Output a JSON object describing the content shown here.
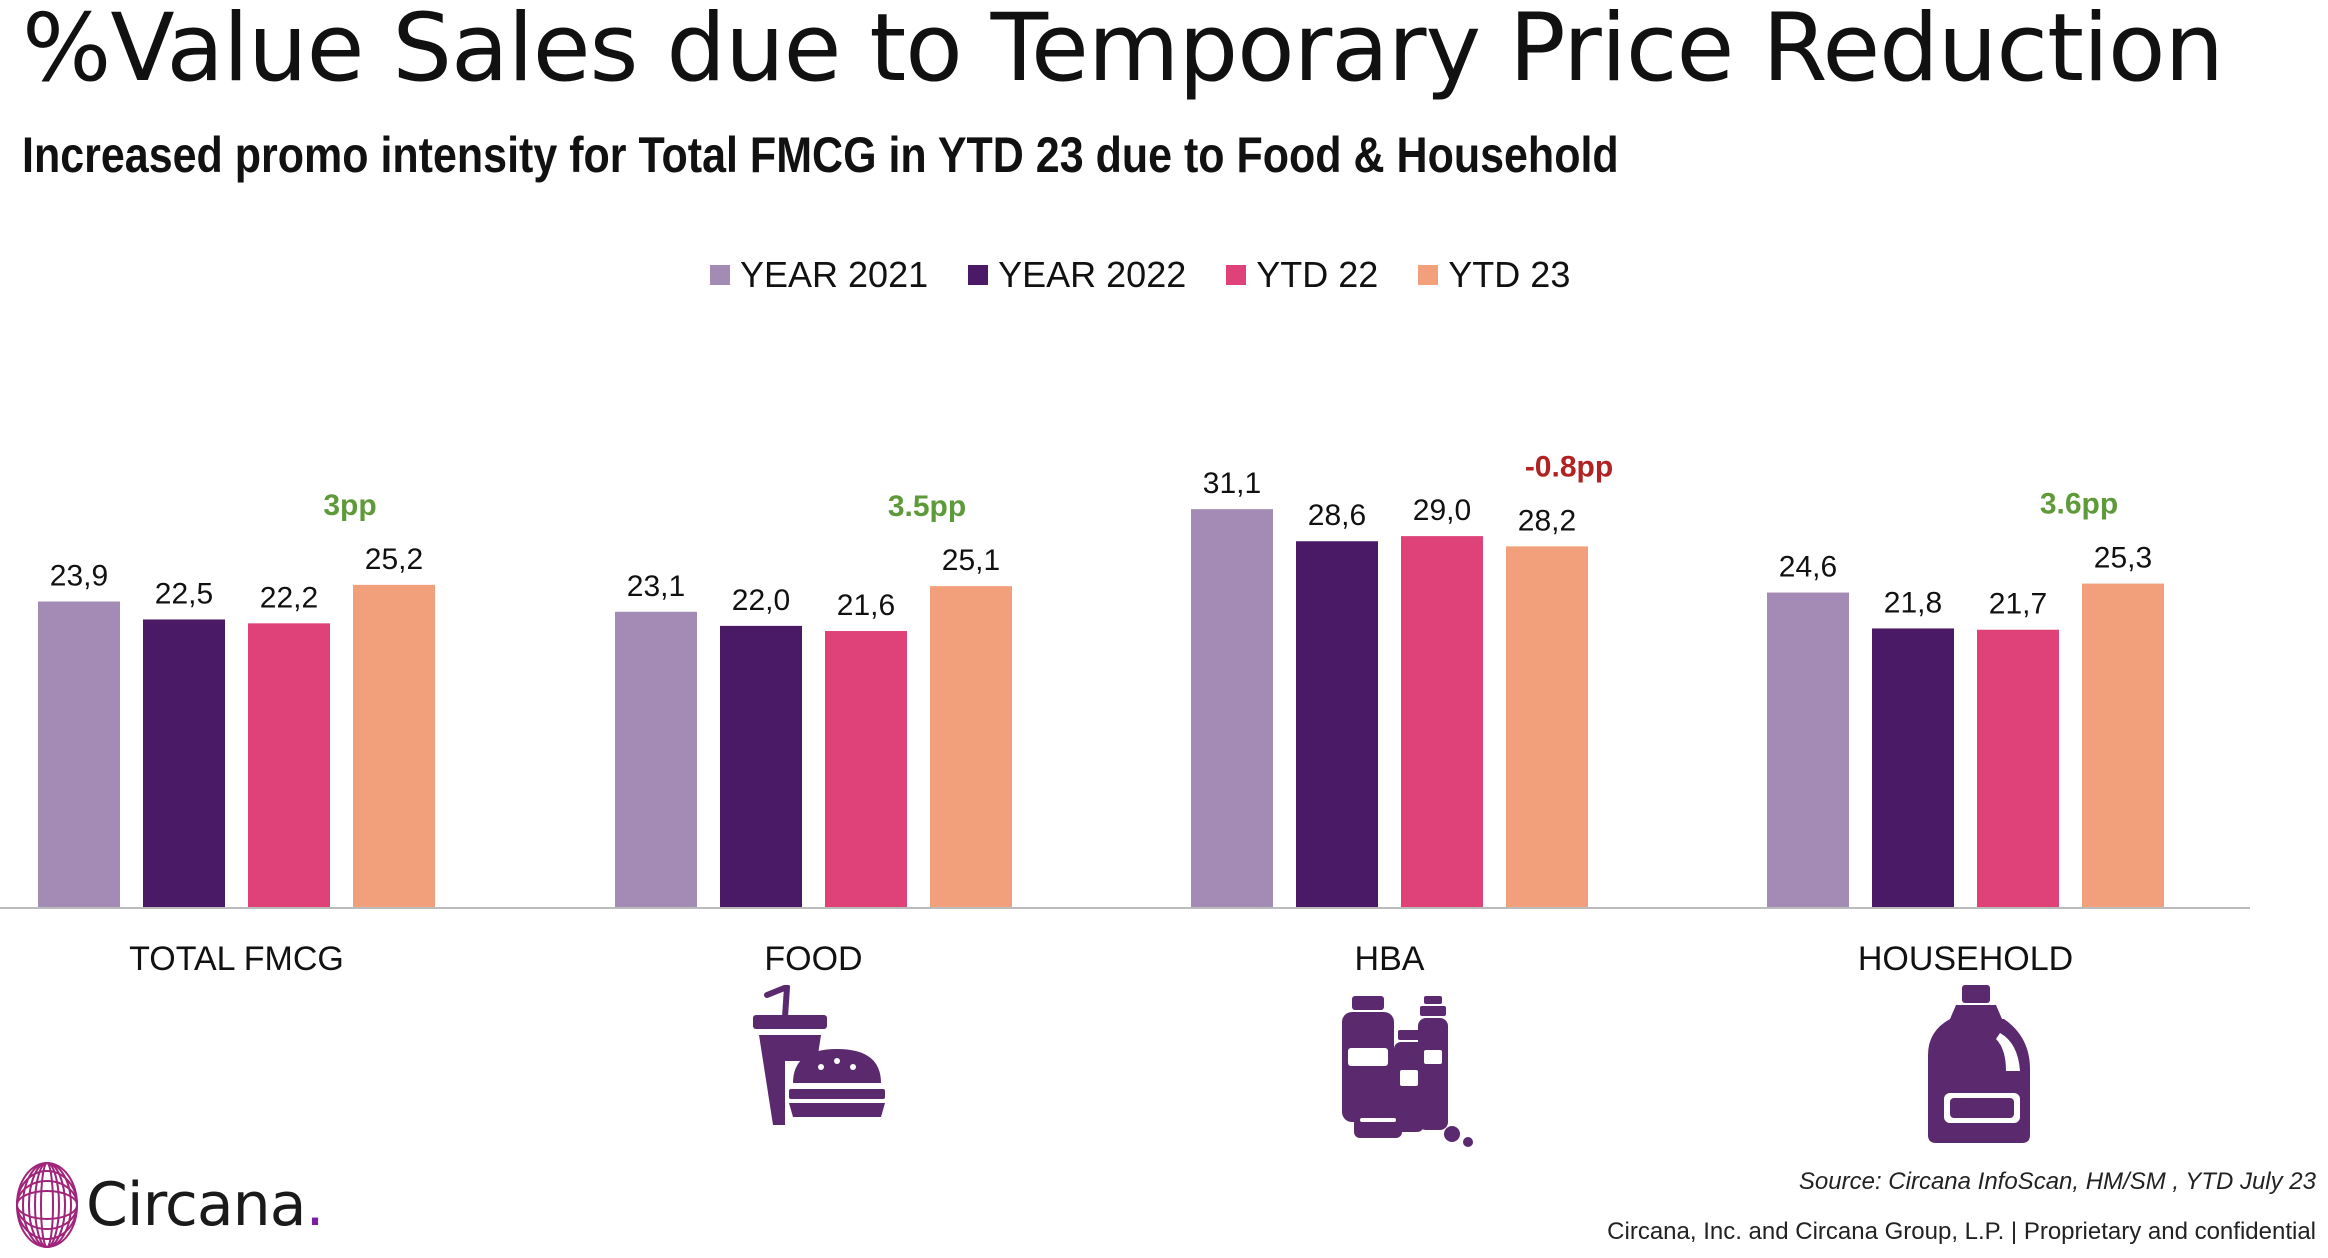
{
  "header": {
    "title": "%Value Sales due to Temporary Price Reduction",
    "subtitle": "Increased promo intensity for Total FMCG in YTD 23 due to Food & Household"
  },
  "legend": [
    {
      "label": "YEAR 2021",
      "color": "#a38bb5"
    },
    {
      "label": "YEAR 2022",
      "color": "#4a1a66"
    },
    {
      "label": "YTD 22",
      "color": "#de4279"
    },
    {
      "label": "YTD 23",
      "color": "#f2a07b"
    }
  ],
  "chart_data": {
    "type": "bar",
    "categories": [
      "TOTAL FMCG",
      "FOOD",
      "HBA",
      "HOUSEHOLD"
    ],
    "series": [
      {
        "name": "YEAR 2021",
        "color": "#a38bb5",
        "values": [
          23.9,
          23.1,
          31.1,
          24.6
        ],
        "labels": [
          "23,9",
          "23,1",
          "31,1",
          "24,6"
        ]
      },
      {
        "name": "YEAR 2022",
        "color": "#4a1a66",
        "values": [
          22.5,
          22.0,
          28.6,
          21.8
        ],
        "labels": [
          "22,5",
          "22,0",
          "28,6",
          "21,8"
        ]
      },
      {
        "name": "YTD 22",
        "color": "#de4279",
        "values": [
          22.2,
          21.6,
          29.0,
          21.7
        ],
        "labels": [
          "22,2",
          "21,6",
          "29,0",
          "21,7"
        ]
      },
      {
        "name": "YTD 23",
        "color": "#f2a07b",
        "values": [
          25.2,
          25.1,
          28.2,
          25.3
        ],
        "labels": [
          "25,2",
          "25,1",
          "28,2",
          "25,3"
        ]
      }
    ],
    "annotations": [
      {
        "category": "TOTAL FMCG",
        "text": "3pp",
        "color": "#5e9a3a"
      },
      {
        "category": "FOOD",
        "text": "3.5pp",
        "color": "#5e9a3a"
      },
      {
        "category": "HBA",
        "text": "-0.8pp",
        "color": "#b22222"
      },
      {
        "category": "HOUSEHOLD",
        "text": "3.6pp",
        "color": "#5e9a3a"
      }
    ],
    "ylim": [
      0,
      34
    ],
    "grid": false,
    "legend_position": "top-center"
  },
  "icons": {
    "food": "fast-food-icon",
    "hba": "toiletries-icon",
    "household": "detergent-bottle-icon",
    "icon_color": "#5b2a6e"
  },
  "footer": {
    "logo_text": "Circana",
    "logo_dot": ".",
    "source": "Source: Circana InfoScan, HM/SM , YTD July 23",
    "copyright": "Circana, Inc. and Circana Group, L.P. |  Proprietary and confidential"
  }
}
